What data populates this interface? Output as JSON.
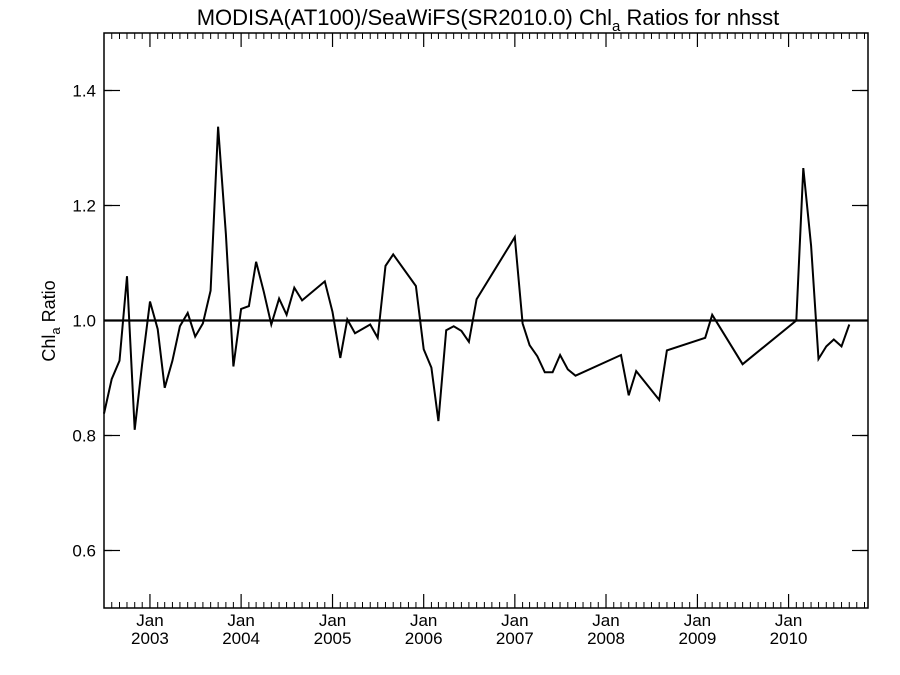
{
  "chart_data": {
    "type": "line",
    "title_main": "MODISA(AT100)/SeaWiFS(SR2010.0)  Chl",
    "title_sub": "a",
    "title_tail": " Ratios for nhsst",
    "ylabel_main": "Chl",
    "ylabel_sub": "a",
    "ylabel_tail": " Ratio",
    "xlim": [
      "2002-07-01",
      "2010-11-15"
    ],
    "ylim": [
      0.5,
      1.5
    ],
    "yticks": [
      {
        "value": 0.6,
        "label": "0.6"
      },
      {
        "value": 0.8,
        "label": "0.8"
      },
      {
        "value": 1.0,
        "label": "1.0"
      },
      {
        "value": 1.2,
        "label": "1.2"
      },
      {
        "value": 1.4,
        "label": "1.4"
      }
    ],
    "xticks": [
      {
        "date": "2003-01-01",
        "month": "Jan",
        "year": "2003"
      },
      {
        "date": "2004-01-01",
        "month": "Jan",
        "year": "2004"
      },
      {
        "date": "2005-01-01",
        "month": "Jan",
        "year": "2005"
      },
      {
        "date": "2006-01-01",
        "month": "Jan",
        "year": "2006"
      },
      {
        "date": "2007-01-01",
        "month": "Jan",
        "year": "2007"
      },
      {
        "date": "2008-01-01",
        "month": "Jan",
        "year": "2008"
      },
      {
        "date": "2009-01-01",
        "month": "Jan",
        "year": "2009"
      },
      {
        "date": "2010-01-01",
        "month": "Jan",
        "year": "2010"
      }
    ],
    "reference_line": 1.0,
    "series": [
      {
        "color": "#000000",
        "points": [
          [
            "2002-07-01",
            0.838
          ],
          [
            "2002-08-01",
            0.898
          ],
          [
            "2002-09-01",
            0.93
          ],
          [
            "2002-10-01",
            1.077
          ],
          [
            "2002-11-01",
            0.81
          ],
          [
            "2002-12-01",
            0.925
          ],
          [
            "2003-01-01",
            1.033
          ],
          [
            "2003-02-01",
            0.985
          ],
          [
            "2003-03-01",
            0.883
          ],
          [
            "2003-04-01",
            0.93
          ],
          [
            "2003-05-01",
            0.99
          ],
          [
            "2003-06-01",
            1.013
          ],
          [
            "2003-07-01",
            0.972
          ],
          [
            "2003-08-01",
            0.995
          ],
          [
            "2003-09-01",
            1.052
          ],
          [
            "2003-10-01",
            1.337
          ],
          [
            "2003-11-01",
            1.15
          ],
          [
            "2003-12-01",
            0.92
          ],
          [
            "2004-01-01",
            1.02
          ],
          [
            "2004-02-01",
            1.025
          ],
          [
            "2004-03-01",
            1.102
          ],
          [
            "2004-04-01",
            1.05
          ],
          [
            "2004-05-01",
            0.993
          ],
          [
            "2004-06-01",
            1.038
          ],
          [
            "2004-07-01",
            1.01
          ],
          [
            "2004-08-01",
            1.057
          ],
          [
            "2004-09-01",
            1.035
          ],
          [
            "2004-12-01",
            1.068
          ],
          [
            "2005-01-01",
            1.015
          ],
          [
            "2005-02-01",
            0.935
          ],
          [
            "2005-03-01",
            1.002
          ],
          [
            "2005-04-01",
            0.978
          ],
          [
            "2005-06-01",
            0.993
          ],
          [
            "2005-07-01",
            0.97
          ],
          [
            "2005-08-01",
            1.095
          ],
          [
            "2005-09-01",
            1.115
          ],
          [
            "2005-12-01",
            1.06
          ],
          [
            "2006-01-01",
            0.95
          ],
          [
            "2006-02-01",
            0.918
          ],
          [
            "2006-03-01",
            0.825
          ],
          [
            "2006-04-01",
            0.983
          ],
          [
            "2006-05-01",
            0.99
          ],
          [
            "2006-06-01",
            0.982
          ],
          [
            "2006-07-01",
            0.963
          ],
          [
            "2006-08-01",
            1.037
          ],
          [
            "2007-01-01",
            1.145
          ],
          [
            "2007-02-01",
            0.995
          ],
          [
            "2007-03-01",
            0.957
          ],
          [
            "2007-04-01",
            0.938
          ],
          [
            "2007-05-01",
            0.91
          ],
          [
            "2007-06-01",
            0.91
          ],
          [
            "2007-07-01",
            0.94
          ],
          [
            "2007-08-01",
            0.915
          ],
          [
            "2007-09-01",
            0.904
          ],
          [
            "2008-03-01",
            0.94
          ],
          [
            "2008-04-01",
            0.87
          ],
          [
            "2008-05-01",
            0.912
          ],
          [
            "2008-08-01",
            0.862
          ],
          [
            "2008-09-01",
            0.948
          ],
          [
            "2009-02-01",
            0.97
          ],
          [
            "2009-03-01",
            1.01
          ],
          [
            "2009-07-01",
            0.924
          ],
          [
            "2010-02-01",
            1.0
          ],
          [
            "2010-03-01",
            1.265
          ],
          [
            "2010-04-01",
            1.13
          ],
          [
            "2010-05-01",
            0.933
          ],
          [
            "2010-06-01",
            0.955
          ],
          [
            "2010-07-01",
            0.967
          ],
          [
            "2010-08-01",
            0.955
          ],
          [
            "2010-09-01",
            0.993
          ]
        ]
      }
    ]
  }
}
